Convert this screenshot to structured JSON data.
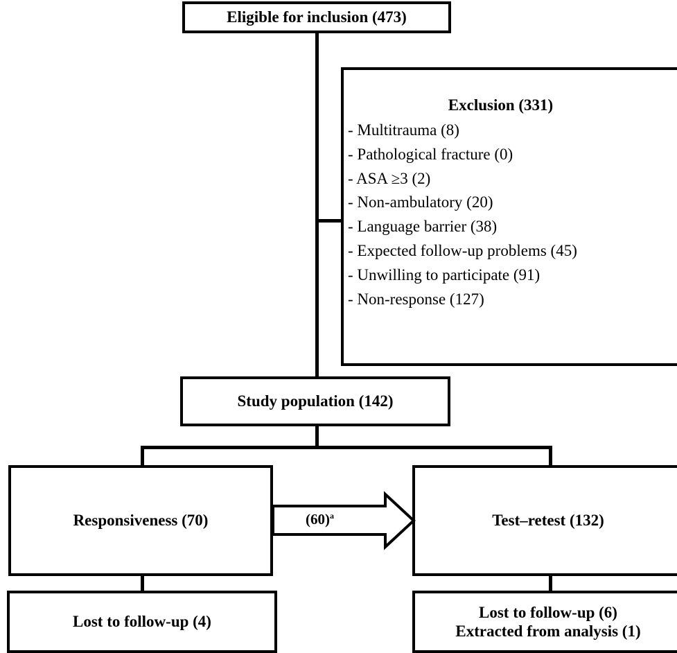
{
  "nodes": {
    "eligible": "Eligible for inclusion (473)",
    "exclusion_title": "Exclusion (331)",
    "exclusion_items": [
      "- Multitrauma (8)",
      "- Pathological fracture (0)",
      "- ASA ≥3 (2)",
      "- Non-ambulatory (20)",
      "- Language barrier (38)",
      "- Expected follow-up problems (45)",
      "- Unwilling to participate (91)",
      "- Non-response (127)"
    ],
    "study_population": "Study population (142)",
    "responsiveness": "Responsiveness (70)",
    "test_retest": "Test–retest (132)",
    "lost_left": "Lost to follow-up (4)",
    "lost_right_line1": "Lost to follow-up (6)",
    "lost_right_line2": "Extracted from analysis (1)"
  },
  "arrow": {
    "label": "(60)",
    "superscript": "a"
  }
}
